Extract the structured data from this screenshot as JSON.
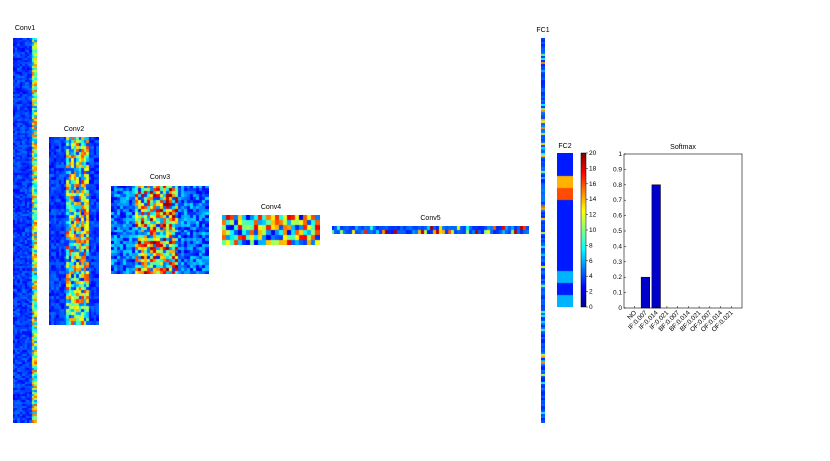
{
  "layers": [
    {
      "id": "conv1",
      "label": "Conv1",
      "rows": 190,
      "cols": 10,
      "seed": 11,
      "profile": "conv1"
    },
    {
      "id": "conv2",
      "label": "Conv2",
      "rows": 60,
      "cols": 20,
      "seed": 23,
      "profile": "conv2"
    },
    {
      "id": "conv3",
      "label": "Conv3",
      "rows": 30,
      "cols": 32,
      "seed": 37,
      "profile": "conv3"
    },
    {
      "id": "conv4",
      "label": "Conv4",
      "rows": 6,
      "cols": 24,
      "seed": 41,
      "profile": "conv4"
    },
    {
      "id": "conv5",
      "label": "Conv5",
      "rows": 2,
      "cols": 66,
      "seed": 53,
      "profile": "conv5"
    },
    {
      "id": "fc1",
      "label": "FC1",
      "rows": 190,
      "cols": 1,
      "seed": 67,
      "profile": "fc1"
    }
  ],
  "fc2": {
    "label": "FC2",
    "values": [
      3,
      3,
      14,
      16,
      3,
      3,
      3,
      3,
      3,
      3,
      6,
      3,
      6
    ]
  },
  "colorbar": {
    "ticks": [
      "0",
      "2",
      "4",
      "6",
      "8",
      "10",
      "12",
      "14",
      "16",
      "18",
      "20"
    ],
    "min": 0,
    "max": 20
  },
  "chart_data": {
    "type": "bar",
    "title": "Softmax",
    "categories": [
      "NO",
      "IF:0.007",
      "IF:0.014",
      "IF:0.021",
      "BF:0.007",
      "BF:0.014",
      "BF:0.021",
      "OF:0.007",
      "OF:0.014",
      "OF:0.021"
    ],
    "values": [
      0,
      0.2,
      0.8,
      0,
      0,
      0,
      0,
      0,
      0,
      0
    ],
    "ylim": [
      0,
      1
    ],
    "yticks": [
      "0",
      "0.1",
      "0.2",
      "0.3",
      "0.4",
      "0.5",
      "0.6",
      "0.7",
      "0.8",
      "0.9",
      "1"
    ],
    "bar_color": "#0000cc"
  }
}
